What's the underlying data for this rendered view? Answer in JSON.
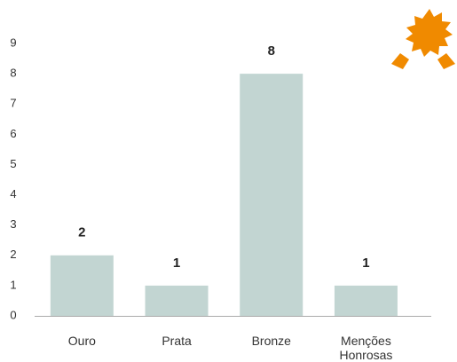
{
  "chart_data": {
    "type": "bar",
    "categories": [
      "Ouro",
      "Prata",
      "Bronze",
      "Menções Honrosas"
    ],
    "values": [
      2,
      1,
      8,
      1
    ],
    "color": "#c2d5d2",
    "ylim": [
      0,
      9
    ],
    "yticks": [
      0,
      1,
      2,
      3,
      4,
      5,
      6,
      7,
      8,
      9
    ],
    "grid": false
  }
}
